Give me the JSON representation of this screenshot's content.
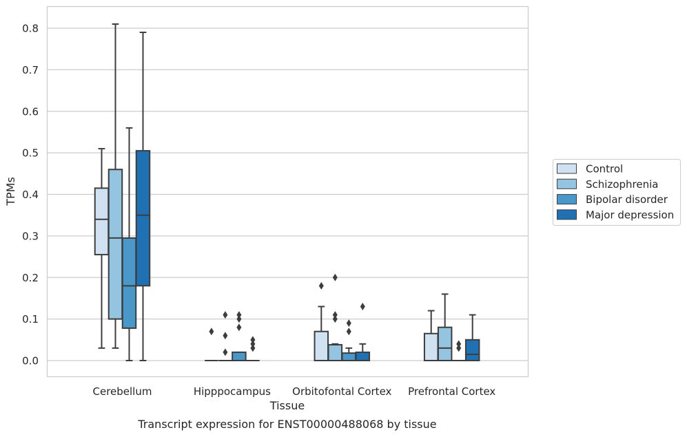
{
  "caption": "Transcript expression for ENST00000488068 by tissue",
  "chart_data": {
    "type": "boxplot",
    "title": "",
    "xlabel": "Tissue",
    "ylabel": "TPMs",
    "ylim": [
      -0.04,
      0.85
    ],
    "yticks": [
      0.0,
      0.1,
      0.2,
      0.3,
      0.4,
      0.5,
      0.6,
      0.7,
      0.8
    ],
    "ytick_labels": [
      "0.0",
      "0.1",
      "0.2",
      "0.3",
      "0.4",
      "0.5",
      "0.6",
      "0.7",
      "0.8"
    ],
    "grid": true,
    "legend_position": "right",
    "categories": [
      "Cerebellum",
      "Hipppocampus",
      "Orbitofontal Cortex",
      "Prefrontal Cortex"
    ],
    "series": [
      {
        "name": "Control",
        "color": "#d0e1f2",
        "boxes": [
          {
            "whislo": 0.03,
            "q1": 0.255,
            "med": 0.34,
            "q3": 0.415,
            "whishi": 0.51,
            "fliers": []
          },
          {
            "whislo": 0.0,
            "q1": 0.0,
            "med": 0.0,
            "q3": 0.0,
            "whishi": 0.0,
            "fliers": [
              0.07
            ]
          },
          {
            "whislo": 0.0,
            "q1": 0.0,
            "med": 0.0,
            "q3": 0.07,
            "whishi": 0.13,
            "fliers": [
              0.18
            ]
          },
          {
            "whislo": 0.0,
            "q1": 0.0,
            "med": 0.0,
            "q3": 0.065,
            "whishi": 0.12,
            "fliers": []
          }
        ]
      },
      {
        "name": "Schizophrenia",
        "color": "#94c4df",
        "boxes": [
          {
            "whislo": 0.03,
            "q1": 0.1,
            "med": 0.295,
            "q3": 0.46,
            "whishi": 0.81,
            "fliers": []
          },
          {
            "whislo": 0.0,
            "q1": 0.0,
            "med": 0.0,
            "q3": 0.0,
            "whishi": 0.0,
            "fliers": [
              0.02,
              0.06,
              0.11
            ]
          },
          {
            "whislo": 0.0,
            "q1": 0.0,
            "med": 0.0,
            "q3": 0.038,
            "whishi": 0.04,
            "fliers": [
              0.1,
              0.11,
              0.2
            ]
          },
          {
            "whislo": 0.0,
            "q1": 0.0,
            "med": 0.03,
            "q3": 0.08,
            "whishi": 0.16,
            "fliers": []
          }
        ]
      },
      {
        "name": "Bipolar disorder",
        "color": "#4a98c9",
        "boxes": [
          {
            "whislo": 0.0,
            "q1": 0.078,
            "med": 0.18,
            "q3": 0.295,
            "whishi": 0.56,
            "fliers": []
          },
          {
            "whislo": 0.0,
            "q1": 0.0,
            "med": 0.0,
            "q3": 0.02,
            "whishi": 0.02,
            "fliers": [
              0.08,
              0.1,
              0.11
            ]
          },
          {
            "whislo": 0.0,
            "q1": 0.0,
            "med": 0.0,
            "q3": 0.018,
            "whishi": 0.03,
            "fliers": [
              0.07,
              0.09
            ]
          },
          {
            "whislo": 0.0,
            "q1": 0.0,
            "med": 0.0,
            "q3": 0.0,
            "whishi": 0.0,
            "fliers": [
              0.03,
              0.04
            ]
          }
        ]
      },
      {
        "name": "Major depression",
        "color": "#2070b4",
        "boxes": [
          {
            "whislo": 0.0,
            "q1": 0.18,
            "med": 0.35,
            "q3": 0.505,
            "whishi": 0.79,
            "fliers": []
          },
          {
            "whislo": 0.0,
            "q1": 0.0,
            "med": 0.0,
            "q3": 0.0,
            "whishi": 0.0,
            "fliers": [
              0.03,
              0.04,
              0.05
            ]
          },
          {
            "whislo": 0.0,
            "q1": 0.0,
            "med": 0.0,
            "q3": 0.02,
            "whishi": 0.04,
            "fliers": [
              0.13
            ]
          },
          {
            "whislo": 0.0,
            "q1": 0.0,
            "med": 0.015,
            "q3": 0.05,
            "whishi": 0.11,
            "fliers": []
          }
        ]
      }
    ]
  }
}
